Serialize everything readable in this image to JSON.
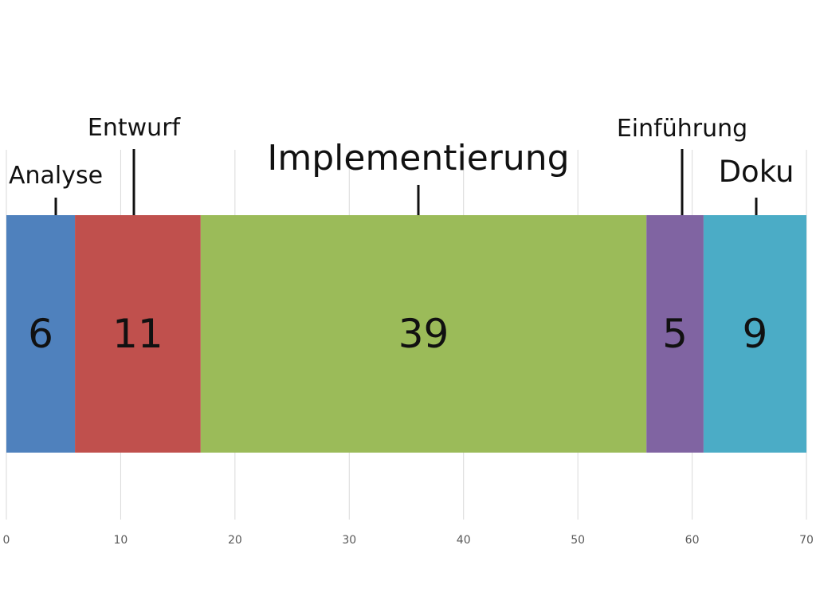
{
  "chart_data": {
    "type": "bar",
    "orientation": "horizontal",
    "stacked": true,
    "title": "",
    "xlabel": "",
    "ylabel": "",
    "xlim": [
      0,
      70
    ],
    "x_ticks": [
      0,
      10,
      20,
      30,
      40,
      50,
      60,
      70
    ],
    "grid": "vertical",
    "legend": "none",
    "series": [
      {
        "name": "Analyse",
        "value": 6,
        "color": "#4F81BD",
        "label_size": "normal"
      },
      {
        "name": "Entwurf",
        "value": 11,
        "color": "#C0504D",
        "label_size": "normal"
      },
      {
        "name": "Implementierung",
        "value": 39,
        "color": "#9BBB59",
        "label_size": "large"
      },
      {
        "name": "Einführung",
        "value": 5,
        "color": "#8064A2",
        "label_size": "normal"
      },
      {
        "name": "Doku",
        "value": 9,
        "color": "#4BACC6",
        "label_size": "medium"
      }
    ]
  }
}
